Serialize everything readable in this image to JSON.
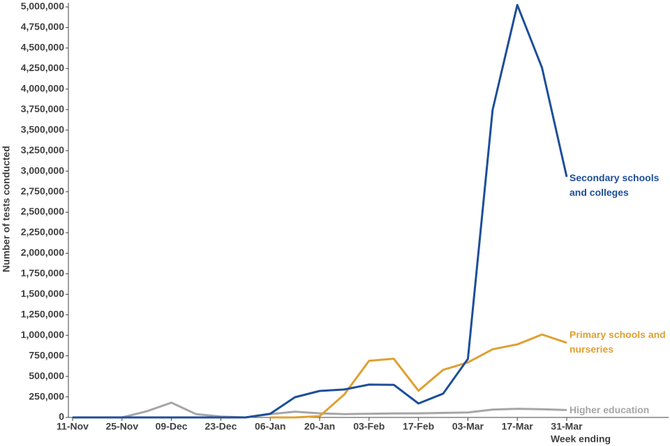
{
  "chart_data": {
    "type": "line",
    "y_label": "Number of tests conducted",
    "x_label": "Week ending",
    "categories": [
      "11-Nov",
      null,
      "25-Nov",
      null,
      "09-Dec",
      null,
      "23-Dec",
      null,
      "06-Jan",
      null,
      "20-Jan",
      null,
      "03-Feb",
      null,
      "17-Feb",
      null,
      "03-Mar",
      null,
      "17-Mar",
      null,
      "31-Mar"
    ],
    "series": [
      {
        "name": "Secondary schools and colleges",
        "color": "#1d4e9a",
        "values": [
          0,
          0,
          0,
          0,
          0,
          0,
          0,
          0,
          45000,
          246000,
          323000,
          340000,
          400000,
          397000,
          170000,
          290000,
          713000,
          3745000,
          5025000,
          4260000,
          2930000
        ]
      },
      {
        "name": "Primary schools and nurseries",
        "color": "#e0a030",
        "values": [
          null,
          null,
          null,
          null,
          null,
          null,
          null,
          null,
          0,
          0,
          15000,
          280000,
          690000,
          715000,
          325000,
          580000,
          670000,
          830000,
          890000,
          1010000,
          910000
        ]
      },
      {
        "name": "Higher education",
        "color": "#a6a6a6",
        "values": [
          0,
          0,
          0,
          75000,
          180000,
          40000,
          10000,
          0,
          40000,
          70000,
          50000,
          40000,
          45000,
          48000,
          50000,
          55000,
          60000,
          95000,
          105000,
          100000,
          90000
        ]
      }
    ],
    "ylim": [
      0,
      5000000
    ],
    "yticks": [
      0,
      {
        "value": 250000,
        "label": "250,000"
      },
      {
        "value": 500000,
        "label": "500,000"
      },
      {
        "value": 750000,
        "label": "750,000"
      },
      {
        "value": 1000000,
        "label": "1,000,000"
      },
      {
        "value": 1250000,
        "label": "1,250,000"
      },
      {
        "value": 1500000,
        "label": "1,500,000"
      },
      {
        "value": 1750000,
        "label": "1,750,000"
      },
      {
        "value": 2000000,
        "label": "2,000,000"
      },
      {
        "value": 2250000,
        "label": "2,250,000"
      },
      {
        "value": 2500000,
        "label": "2,500,000"
      },
      {
        "value": 2750000,
        "label": "2,750,000"
      },
      {
        "value": 3000000,
        "label": "3,000,000"
      },
      {
        "value": 3250000,
        "label": "3,250,000"
      },
      {
        "value": 3500000,
        "label": "3,500,000"
      },
      {
        "value": 3750000,
        "label": "3,750,000"
      },
      {
        "value": 4000000,
        "label": "4,000,000"
      },
      {
        "value": 4250000,
        "label": "4,250,000"
      },
      {
        "value": 4500000,
        "label": "4,500,000"
      },
      {
        "value": 4750000,
        "label": "4,750,000"
      },
      {
        "value": 5000000,
        "label": "5,000,000"
      }
    ],
    "grid": false
  }
}
